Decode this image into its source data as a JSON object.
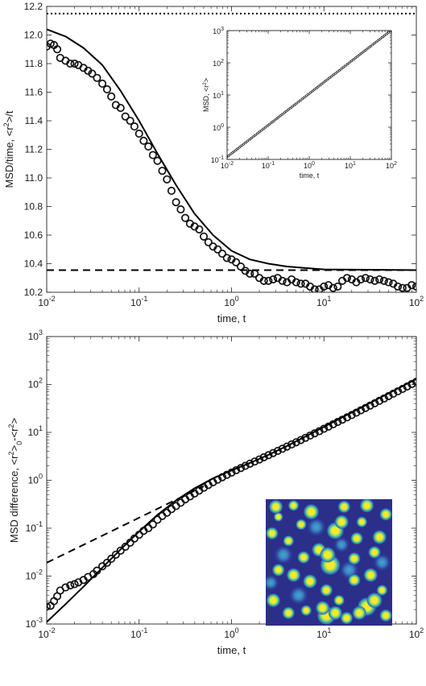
{
  "chart_data": [
    {
      "type": "scatter",
      "title": "",
      "xlabel": "time, t",
      "ylabel": "MSD/time, <r²>/t",
      "xscale": "log",
      "xlim": [
        0.01,
        100
      ],
      "ylim": [
        10.2,
        12.2
      ],
      "xticks": [
        "10^-2",
        "10^-1",
        "10^0",
        "10^1",
        "10^2"
      ],
      "yticks": [
        "10.2",
        "10.4",
        "10.6",
        "10.8",
        "11.0",
        "11.2",
        "11.4",
        "11.6",
        "11.8",
        "12.0",
        "12.2"
      ],
      "grid": false,
      "series": [
        {
          "style": "circles",
          "points": [
            [
              0.01,
              11.92
            ],
            [
              0.011,
              11.94
            ],
            [
              0.012,
              11.93
            ],
            [
              0.013,
              11.9
            ],
            [
              0.014,
              11.84
            ],
            [
              0.016,
              11.82
            ],
            [
              0.018,
              11.8
            ],
            [
              0.02,
              11.8
            ],
            [
              0.022,
              11.79
            ],
            [
              0.025,
              11.77
            ],
            [
              0.028,
              11.75
            ],
            [
              0.031,
              11.73
            ],
            [
              0.035,
              11.7
            ],
            [
              0.04,
              11.66
            ],
            [
              0.045,
              11.62
            ],
            [
              0.05,
              11.57
            ],
            [
              0.056,
              11.51
            ],
            [
              0.063,
              11.49
            ],
            [
              0.071,
              11.43
            ],
            [
              0.08,
              11.4
            ],
            [
              0.089,
              11.36
            ],
            [
              0.1,
              11.31
            ],
            [
              0.112,
              11.26
            ],
            [
              0.126,
              11.22
            ],
            [
              0.141,
              11.16
            ],
            [
              0.158,
              11.12
            ],
            [
              0.178,
              11.05
            ],
            [
              0.2,
              10.99
            ],
            [
              0.224,
              10.91
            ],
            [
              0.251,
              10.83
            ],
            [
              0.282,
              10.78
            ],
            [
              0.316,
              10.72
            ],
            [
              0.355,
              10.68
            ],
            [
              0.398,
              10.66
            ],
            [
              0.447,
              10.64
            ],
            [
              0.501,
              10.59
            ],
            [
              0.562,
              10.55
            ],
            [
              0.631,
              10.52
            ],
            [
              0.708,
              10.5
            ],
            [
              0.794,
              10.47
            ],
            [
              0.891,
              10.44
            ],
            [
              1.0,
              10.43
            ],
            [
              1.12,
              10.41
            ],
            [
              1.26,
              10.38
            ],
            [
              1.41,
              10.35
            ],
            [
              1.58,
              10.33
            ],
            [
              1.78,
              10.33
            ],
            [
              2.0,
              10.3
            ],
            [
              2.24,
              10.28
            ],
            [
              2.51,
              10.28
            ],
            [
              2.82,
              10.29
            ],
            [
              3.16,
              10.3
            ],
            [
              3.55,
              10.28
            ],
            [
              3.98,
              10.27
            ],
            [
              4.47,
              10.29
            ],
            [
              5.01,
              10.27
            ],
            [
              5.62,
              10.26
            ],
            [
              6.31,
              10.26
            ],
            [
              7.08,
              10.24
            ],
            [
              7.94,
              10.22
            ],
            [
              8.91,
              10.22
            ],
            [
              10.0,
              10.24
            ],
            [
              11.2,
              10.25
            ],
            [
              12.6,
              10.23
            ],
            [
              14.1,
              10.24
            ],
            [
              15.8,
              10.28
            ],
            [
              17.8,
              10.3
            ],
            [
              20.0,
              10.29
            ],
            [
              22.4,
              10.27
            ],
            [
              25.1,
              10.29
            ],
            [
              28.2,
              10.3
            ],
            [
              31.6,
              10.29
            ],
            [
              35.5,
              10.28
            ],
            [
              39.8,
              10.29
            ],
            [
              44.7,
              10.28
            ],
            [
              50.1,
              10.27
            ],
            [
              56.2,
              10.26
            ],
            [
              63.1,
              10.24
            ],
            [
              70.8,
              10.23
            ],
            [
              79.4,
              10.23
            ],
            [
              89.1,
              10.25
            ],
            [
              100.0,
              10.24
            ]
          ]
        },
        {
          "style": "solid",
          "points": [
            [
              0.01,
              12.04
            ],
            [
              0.016,
              11.99
            ],
            [
              0.025,
              11.91
            ],
            [
              0.04,
              11.79
            ],
            [
              0.063,
              11.61
            ],
            [
              0.1,
              11.4
            ],
            [
              0.158,
              11.17
            ],
            [
              0.251,
              10.95
            ],
            [
              0.398,
              10.75
            ],
            [
              0.631,
              10.6
            ],
            [
              1.0,
              10.49
            ],
            [
              1.58,
              10.43
            ],
            [
              2.51,
              10.4
            ],
            [
              3.98,
              10.38
            ],
            [
              6.31,
              10.37
            ],
            [
              10.0,
              10.36
            ],
            [
              100.0,
              10.355
            ]
          ]
        },
        {
          "style": "dashed",
          "points": [
            [
              0.01,
              10.355
            ],
            [
              100,
              10.355
            ]
          ]
        },
        {
          "style": "dotted",
          "points": [
            [
              0.01,
              12.15
            ],
            [
              100,
              12.15
            ]
          ]
        }
      ]
    },
    {
      "type": "line",
      "inset": true,
      "xlabel": "time, t",
      "ylabel": "MSD, <r²>",
      "xscale": "log",
      "yscale": "log",
      "xlim": [
        0.01,
        100
      ],
      "ylim": [
        0.1,
        1000
      ],
      "xticks": [
        "10^-2",
        "10^-1",
        "10^0",
        "10^1",
        "10^2"
      ],
      "yticks": [
        "10^-1",
        "10^0",
        "10^1",
        "10^2",
        "10^3"
      ],
      "series": [
        {
          "style": "circles",
          "points": [
            [
              0.01,
              0.12
            ],
            [
              100,
              1024
            ]
          ]
        }
      ]
    },
    {
      "type": "scatter",
      "title": "",
      "xlabel": "time, t",
      "ylabel": "MSD difference, <r²>₀-<r²>",
      "xscale": "log",
      "yscale": "log",
      "xlim": [
        0.01,
        100
      ],
      "ylim": [
        0.001,
        1000
      ],
      "xticks": [
        "10^-2",
        "10^-1",
        "10^0",
        "10^1",
        "10^2"
      ],
      "yticks": [
        "10^-3",
        "10^-2",
        "10^-1",
        "10^0",
        "10^1",
        "10^2",
        "10^3"
      ],
      "grid": false,
      "series": [
        {
          "style": "circles",
          "points": [
            [
              0.01,
              0.0023
            ],
            [
              0.011,
              0.0024
            ],
            [
              0.012,
              0.003
            ],
            [
              0.013,
              0.0038
            ],
            [
              0.014,
              0.005
            ],
            [
              0.016,
              0.0058
            ],
            [
              0.018,
              0.0064
            ],
            [
              0.02,
              0.0068
            ],
            [
              0.022,
              0.0074
            ],
            [
              0.025,
              0.0083
            ],
            [
              0.028,
              0.0096
            ],
            [
              0.032,
              0.011
            ],
            [
              0.035,
              0.013
            ],
            [
              0.04,
              0.016
            ],
            [
              0.045,
              0.019
            ],
            [
              0.05,
              0.023
            ],
            [
              0.056,
              0.028
            ],
            [
              0.063,
              0.034
            ],
            [
              0.071,
              0.041
            ],
            [
              0.08,
              0.05
            ],
            [
              0.089,
              0.061
            ],
            [
              0.1,
              0.073
            ],
            [
              0.112,
              0.088
            ],
            [
              0.126,
              0.1
            ],
            [
              0.141,
              0.12
            ],
            [
              0.158,
              0.15
            ],
            [
              0.178,
              0.18
            ],
            [
              0.2,
              0.21
            ],
            [
              0.224,
              0.25
            ],
            [
              0.251,
              0.29
            ],
            [
              0.282,
              0.34
            ],
            [
              0.316,
              0.4
            ],
            [
              0.355,
              0.46
            ],
            [
              0.398,
              0.53
            ],
            [
              0.447,
              0.61
            ],
            [
              0.501,
              0.7
            ],
            [
              0.562,
              0.8
            ],
            [
              0.631,
              0.91
            ],
            [
              0.708,
              1.03
            ],
            [
              0.794,
              1.16
            ],
            [
              0.891,
              1.3
            ],
            [
              1.0,
              1.45
            ],
            [
              1.12,
              1.62
            ],
            [
              1.26,
              1.8
            ],
            [
              1.41,
              2.0
            ],
            [
              1.58,
              2.22
            ],
            [
              1.78,
              2.46
            ],
            [
              2.0,
              2.72
            ],
            [
              2.24,
              3.02
            ],
            [
              2.51,
              3.34
            ],
            [
              2.82,
              3.7
            ],
            [
              3.16,
              4.1
            ],
            [
              3.55,
              4.55
            ],
            [
              3.98,
              5.05
            ],
            [
              4.47,
              5.6
            ],
            [
              5.01,
              6.22
            ],
            [
              5.62,
              6.92
            ],
            [
              6.31,
              7.7
            ],
            [
              7.08,
              8.57
            ],
            [
              7.94,
              9.55
            ],
            [
              8.91,
              10.6
            ],
            [
              10.0,
              11.9
            ],
            [
              11.2,
              13.2
            ],
            [
              12.6,
              14.8
            ],
            [
              14.1,
              16.5
            ],
            [
              15.8,
              18.4
            ],
            [
              17.8,
              20.6
            ],
            [
              20.0,
              23.0
            ],
            [
              22.4,
              25.8
            ],
            [
              25.1,
              28.9
            ],
            [
              28.2,
              32.3
            ],
            [
              31.6,
              36.2
            ],
            [
              35.5,
              40.6
            ],
            [
              39.8,
              45.5
            ],
            [
              44.7,
              51.0
            ],
            [
              50.1,
              57.2
            ],
            [
              56.2,
              64.2
            ],
            [
              63.1,
              72.0
            ],
            [
              70.8,
              80.8
            ],
            [
              79.4,
              90.7
            ],
            [
              89.1,
              101.8
            ],
            [
              100.0,
              114.0
            ]
          ]
        },
        {
          "style": "solid",
          "points": [
            [
              0.01,
              0.0011
            ],
            [
              0.016,
              0.0026
            ],
            [
              0.025,
              0.006
            ],
            [
              0.04,
              0.015
            ],
            [
              0.063,
              0.036
            ],
            [
              0.1,
              0.085
            ],
            [
              0.158,
              0.19
            ],
            [
              0.251,
              0.38
            ],
            [
              0.398,
              0.68
            ],
            [
              0.631,
              1.1
            ],
            [
              1.0,
              1.6
            ],
            [
              1.58,
              2.3
            ],
            [
              2.51,
              3.4
            ],
            [
              3.98,
              5.2
            ],
            [
              6.31,
              8.2
            ],
            [
              10.0,
              13.0
            ],
            [
              15.8,
              20.6
            ],
            [
              25.1,
              32.6
            ],
            [
              39.8,
              52.0
            ],
            [
              63.1,
              82.0
            ],
            [
              100.0,
              130.0
            ]
          ]
        },
        {
          "style": "dashed",
          "points": [
            [
              0.01,
              0.019
            ],
            [
              0.5,
              0.75
            ]
          ]
        }
      ]
    }
  ]
}
